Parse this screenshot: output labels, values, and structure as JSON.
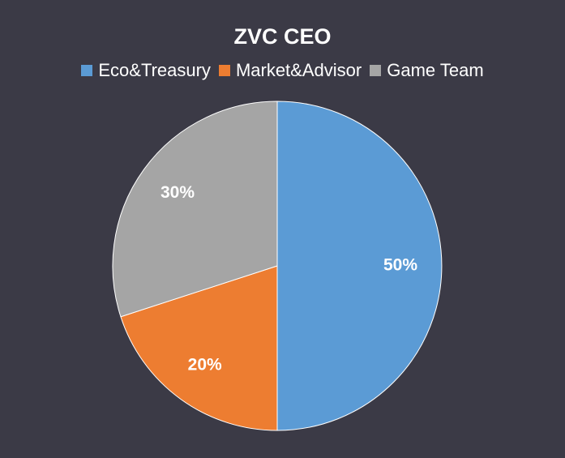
{
  "chart_data": {
    "type": "pie",
    "title": "ZVC CEO",
    "legend_position": "top",
    "categories": [
      "Eco&Treasury",
      "Market&Advisor",
      "Game Team"
    ],
    "values": [
      50,
      20,
      30
    ],
    "labels": [
      "50%",
      "20%",
      "30%"
    ],
    "colors": [
      "#5b9bd5",
      "#ed7d31",
      "#a5a5a5"
    ],
    "background": "#3b3a46"
  }
}
